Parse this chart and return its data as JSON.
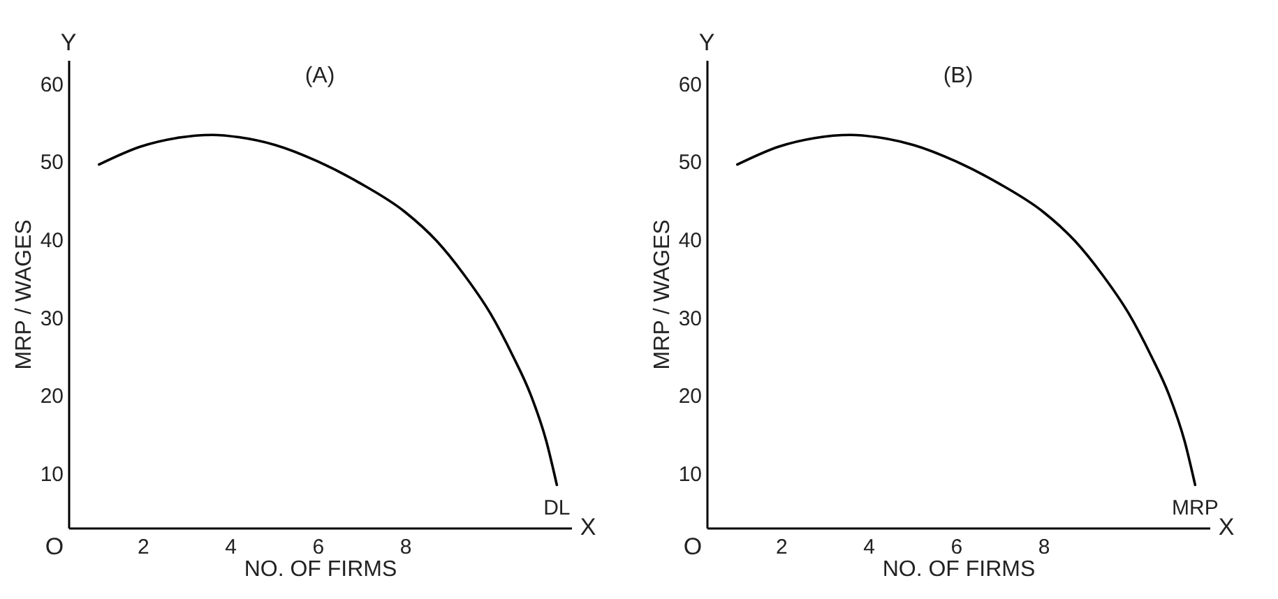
{
  "chart_data": [
    {
      "type": "line",
      "title": "(A)",
      "xlabel": "NO. OF FIRMS",
      "ylabel": "MRP / WAGES",
      "xlim": [
        0.3,
        11.8
      ],
      "ylim": [
        3,
        63
      ],
      "xticks": [
        2,
        4,
        6,
        8
      ],
      "yticks": [
        10,
        20,
        30,
        40,
        50,
        60
      ],
      "grid": false,
      "marker": "none",
      "line_style": "solid",
      "annotations": [
        "O",
        "X",
        "Y"
      ],
      "x": [
        1.0,
        1.95,
        2.77,
        3.59,
        4.2,
        5.03,
        6.0,
        6.97,
        8.0,
        8.72,
        9.33,
        9.95,
        10.46,
        10.87,
        11.23,
        11.47
      ],
      "series": [
        {
          "name": "DL",
          "color": "#000000",
          "values": [
            49.6,
            51.9,
            53.0,
            53.4,
            53.1,
            52.1,
            50.0,
            47.2,
            43.5,
            39.8,
            35.6,
            30.5,
            25.1,
            20.1,
            14.1,
            8.5
          ]
        }
      ]
    },
    {
      "type": "line",
      "title": "(B)",
      "xlabel": "NO. OF FIRMS",
      "ylabel": "MRP / WAGES",
      "xlim": [
        0.3,
        11.8
      ],
      "ylim": [
        3,
        63
      ],
      "xticks": [
        2,
        4,
        6,
        8
      ],
      "yticks": [
        10,
        20,
        30,
        40,
        50,
        60
      ],
      "grid": false,
      "marker": "none",
      "line_style": "solid",
      "annotations": [
        "O",
        "X",
        "Y"
      ],
      "x": [
        1.0,
        1.95,
        2.77,
        3.59,
        4.2,
        5.03,
        6.0,
        6.97,
        8.0,
        8.72,
        9.33,
        9.95,
        10.46,
        10.87,
        11.23,
        11.47
      ],
      "series": [
        {
          "name": "MRP",
          "color": "#000000",
          "values": [
            49.6,
            51.9,
            53.0,
            53.4,
            53.1,
            52.1,
            50.0,
            47.2,
            43.5,
            39.8,
            35.6,
            30.5,
            25.1,
            20.1,
            14.1,
            8.5
          ]
        }
      ]
    }
  ]
}
